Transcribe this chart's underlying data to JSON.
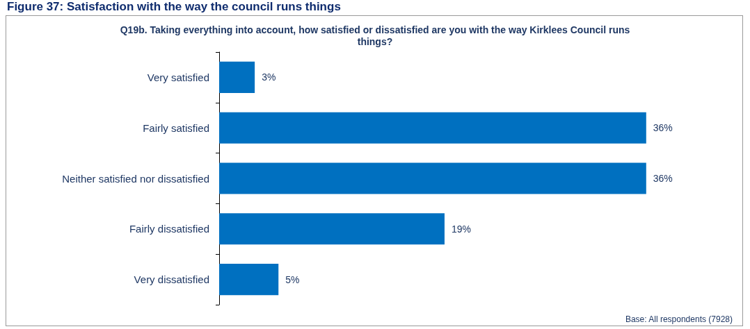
{
  "chart_data": {
    "type": "bar",
    "orientation": "horizontal",
    "title": "Figure 37:    Satisfaction with the way the council runs things",
    "subtitle": "Q19b. Taking everything into account, how satisfied or dissatisfied are you with the way Kirklees Council runs things?",
    "categories": [
      "Very satisfied",
      "Fairly satisfied",
      "Neither satisfied nor dissatisfied",
      "Fairly dissatisfied",
      "Very dissatisfied"
    ],
    "values": [
      3,
      36,
      36,
      19,
      5
    ],
    "value_labels": [
      "3%",
      "36%",
      "36%",
      "19%",
      "5%"
    ],
    "color": "#0070c0",
    "grid": false,
    "annotations": [
      "Base: All respondents (7928)"
    ]
  }
}
